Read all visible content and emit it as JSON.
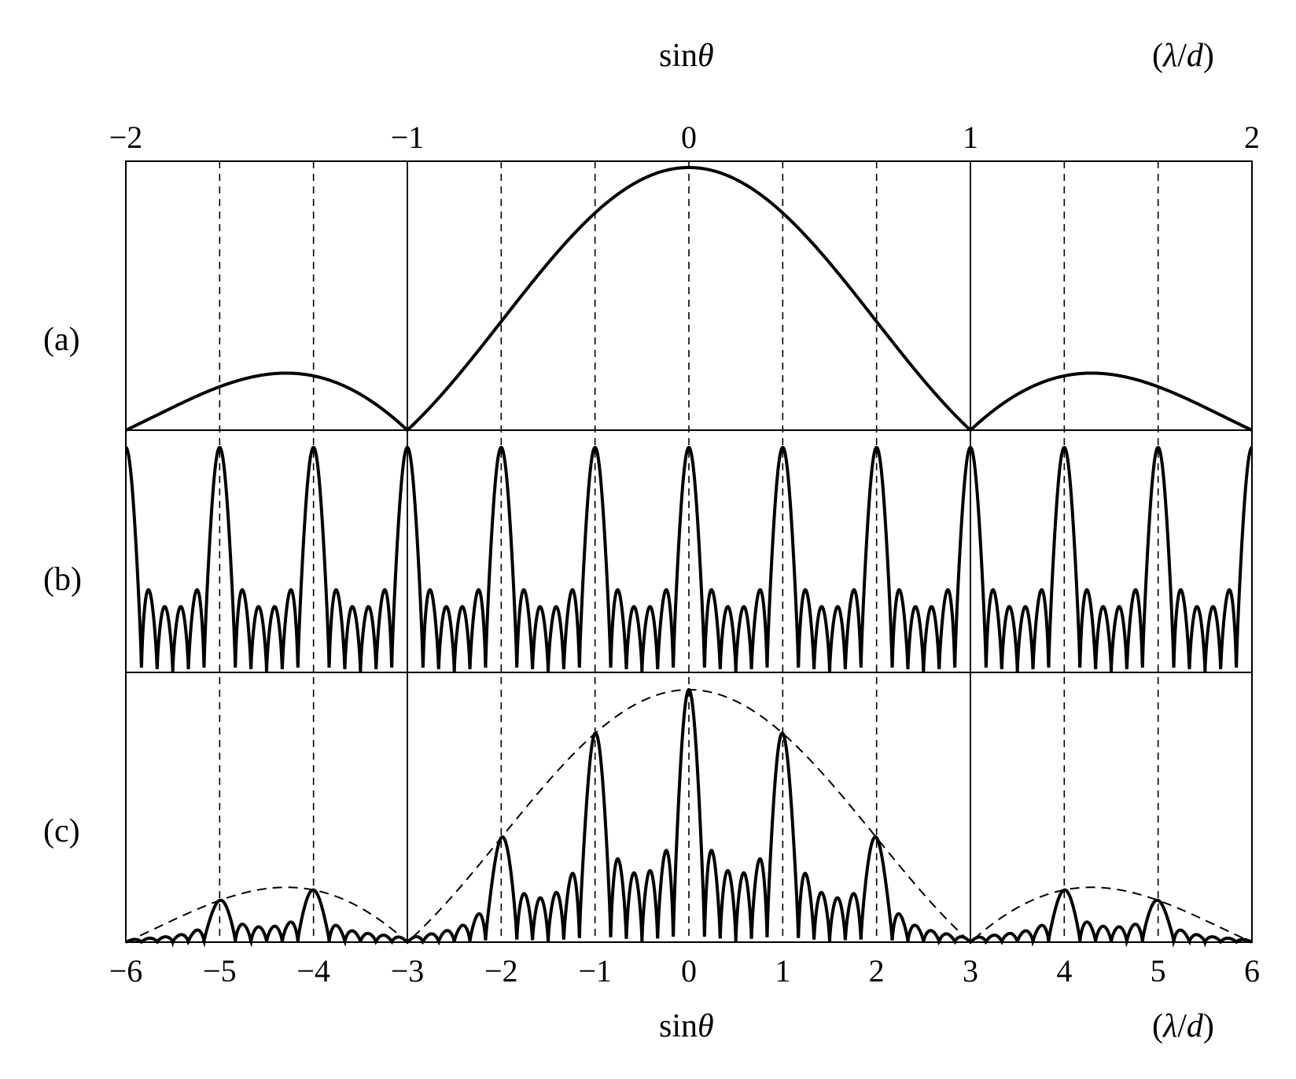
{
  "colors": {
    "ink": "#000000",
    "background": "#ffffff"
  },
  "chart_data": {
    "type": "line",
    "description_panels": [
      "(a)",
      "(b)",
      "(c)"
    ],
    "top_axis": {
      "label_main": "sin",
      "label_symbol": "θ",
      "unit_open": "(",
      "unit_lambda": "λ",
      "unit_slash": "/",
      "unit_d": "d",
      "unit_close": ")",
      "range": [
        -2,
        2
      ],
      "ticks": [
        {
          "value": -2,
          "label": "−2"
        },
        {
          "value": -1,
          "label": "−1"
        },
        {
          "value": 0,
          "label": "0"
        },
        {
          "value": 1,
          "label": "1"
        },
        {
          "value": 2,
          "label": "2"
        }
      ]
    },
    "bottom_axis": {
      "label_main": "sin",
      "label_symbol": "θ",
      "unit_open": "(",
      "unit_lambda": "λ",
      "unit_slash": "/",
      "unit_d": "d",
      "unit_close": ")",
      "range": [
        -6,
        6
      ],
      "ticks": [
        {
          "value": -6,
          "label": "−6"
        },
        {
          "value": -5,
          "label": "−5"
        },
        {
          "value": -4,
          "label": "−4"
        },
        {
          "value": -3,
          "label": "−3"
        },
        {
          "value": -2,
          "label": "−2"
        },
        {
          "value": -1,
          "label": "−1"
        },
        {
          "value": 0,
          "label": "0"
        },
        {
          "value": 1,
          "label": "1"
        },
        {
          "value": 2,
          "label": "2"
        },
        {
          "value": 3,
          "label": "3"
        },
        {
          "value": 4,
          "label": "4"
        },
        {
          "value": 5,
          "label": "5"
        },
        {
          "value": 6,
          "label": "6"
        }
      ]
    },
    "solid_gridlines_x": [
      -3,
      3
    ],
    "dashed_gridlines_x": [
      -5,
      -4,
      -2,
      -1,
      1,
      2,
      4,
      5
    ],
    "slit_ratio_d_over_a": 3,
    "grating_slits_N": 6,
    "panels": [
      {
        "label": "(a)",
        "curve": "single-slit envelope",
        "x_range": [
          -6,
          6
        ],
        "peak_y": 1.0
      },
      {
        "label": "(b)",
        "curve": "multi-slit interference",
        "principal_maxima_x": [
          -6,
          -5,
          -4,
          -3,
          -2,
          -1,
          0,
          1,
          2,
          3,
          4,
          5,
          6
        ],
        "secondary_maxima_between": 4
      },
      {
        "label": "(c)",
        "curve": "combined pattern",
        "envelope_dashed": true,
        "missing_orders_x": [
          -6,
          -3,
          3,
          6
        ]
      }
    ]
  }
}
